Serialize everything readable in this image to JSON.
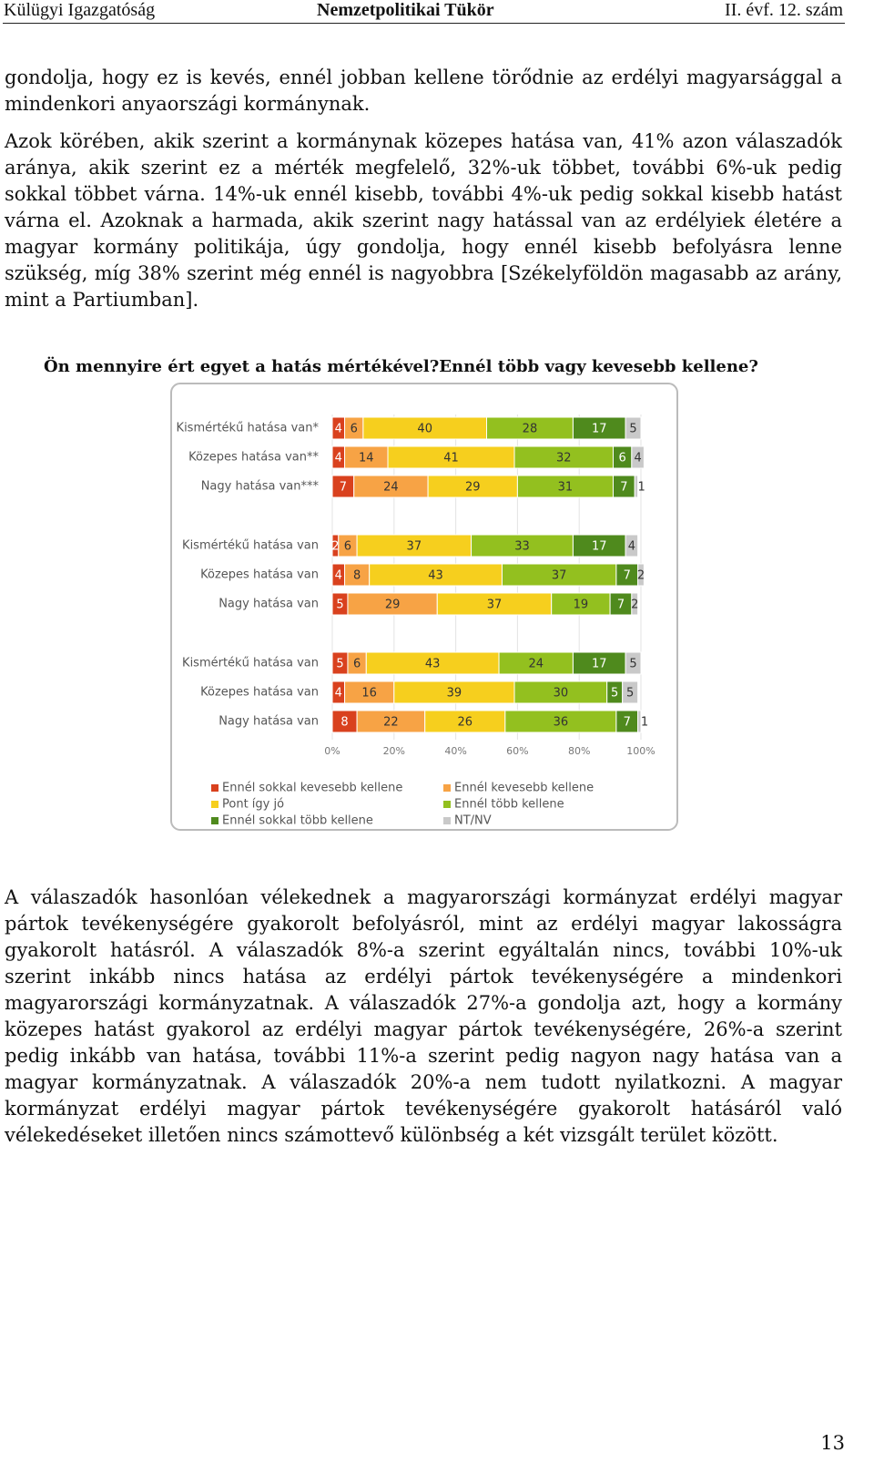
{
  "header": {
    "left": "Külügyi Igazgatóság",
    "center": "Nemzetpolitikai Tükör",
    "right": "II. évf. 12. szám"
  },
  "paragraphs": [
    "gondolja, hogy ez is kevés, ennél jobban kellene törődnie az erdélyi magyarsággal a mindenkori anyaországi kormánynak.",
    "Azok körében, akik szerint a kormánynak közepes hatása van, 41% azon válaszadók aránya, akik szerint ez a mérték megfelelő, 32%-uk többet, további 6%-uk pedig sokkal többet várna. 14%-uk ennél kisebb, további 4%-uk pedig sokkal kisebb hatást várna el. Azoknak a harmada, akik szerint nagy hatással van az erdélyiek életére a magyar kormány politikája, úgy gondolja, hogy ennél kisebb befolyásra lenne szükség, míg 38% szerint még ennél is nagyobbra [Székelyföldön magasabb az arány, mint a Partiumban]."
  ],
  "chart_caption": "Ön mennyire ért egyet a hatás mértékével?Ennél több vagy kevesebb kellene?",
  "chart_data": {
    "type": "stacked-bar-horizontal",
    "categories": [
      "Kismértékű hatása van*",
      "Közepes hatása van**",
      "Nagy hatása van***",
      "Kismértékű hatása van",
      "Közepes hatása van",
      "Nagy hatása van",
      "Kismértékű hatása van",
      "Közepes hatása van",
      "Nagy hatása van"
    ],
    "series": [
      {
        "name": "Ennél sokkal kevesebb kellene",
        "color": "#d9411e",
        "values": [
          4,
          4,
          7,
          2,
          4,
          5,
          5,
          4,
          8
        ]
      },
      {
        "name": "Ennél kevesebb kellene",
        "color": "#f7a345",
        "values": [
          6,
          14,
          24,
          6,
          8,
          29,
          6,
          16,
          22
        ]
      },
      {
        "name": "Pont így jó",
        "color": "#f6cf1e",
        "values": [
          40,
          41,
          29,
          37,
          43,
          37,
          43,
          39,
          26
        ]
      },
      {
        "name": "Ennél több kellene",
        "color": "#93c01f",
        "values": [
          28,
          32,
          31,
          33,
          37,
          19,
          24,
          30,
          36
        ]
      },
      {
        "name": "Ennél sokkal több kellene",
        "color": "#4f8a1d",
        "values": [
          17,
          6,
          7,
          17,
          7,
          7,
          17,
          5,
          7
        ]
      },
      {
        "name": "NT/NV",
        "color": "#c9c9c9",
        "values": [
          5,
          4,
          1,
          4,
          2,
          2,
          5,
          5,
          1
        ]
      }
    ],
    "xlim": [
      0,
      100
    ],
    "xticks": [
      {
        "value": 0,
        "label": "0%"
      },
      {
        "value": 20,
        "label": "20%"
      },
      {
        "value": 40,
        "label": "40%"
      },
      {
        "value": 60,
        "label": "60%"
      },
      {
        "value": 80,
        "label": "80%"
      },
      {
        "value": 100,
        "label": "100%"
      }
    ],
    "grid": true
  },
  "paragraphs_after": [
    "A válaszadók hasonlóan vélekednek a magyarországi kormányzat erdélyi magyar pártok tevékenységére gyakorolt befolyásról, mint az erdélyi magyar lakosságra gyakorolt hatásról. A válaszadók 8%-a szerint egyáltalán nincs, további 10%-uk szerint inkább nincs hatása az erdélyi pártok tevékenységére a mindenkori magyarországi kormányzatnak. A válaszadók 27%-a gondolja azt, hogy a kormány közepes hatást gyakorol az erdélyi magyar pártok tevékenységére, 26%-a szerint pedig inkább van hatása, további 11%-a szerint pedig nagyon nagy hatása van a magyar kormányzatnak. A válaszadók 20%-a nem tudott nyilatkozni. A magyar kormányzat erdélyi magyar pártok tevékenységére gyakorolt hatásáról való vélekedéseket illetően nincs számottevő különbség a két vizsgált terület között."
  ],
  "page_number": "13"
}
